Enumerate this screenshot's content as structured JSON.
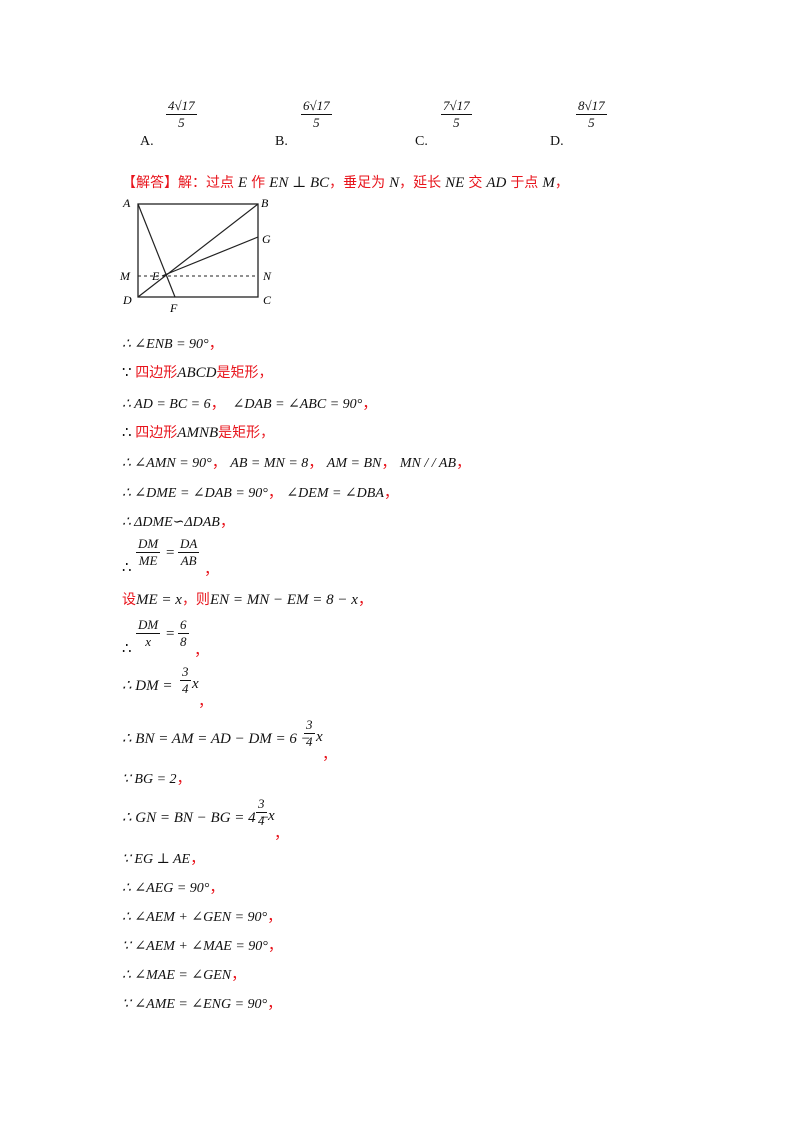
{
  "choices": [
    {
      "label": "A.",
      "num": "4√17",
      "den": "5"
    },
    {
      "label": "B.",
      "num": "6√17",
      "den": "5"
    },
    {
      "label": "C.",
      "num": "7√17",
      "den": "5"
    },
    {
      "label": "D.",
      "num": "8√17",
      "den": "5"
    }
  ],
  "answer": {
    "tag": "【解答】",
    "intro_1": "解：过点",
    "E": "E",
    "intro_2": "作",
    "en_perp_bc": "EN ⊥ BC",
    "intro_3": "，垂足为",
    "N": "N",
    "intro_4": "，延长",
    "NE": "NE",
    "intro_5": "交",
    "AD": "AD",
    "intro_6": "于点",
    "M": "M",
    "intro_7": "，"
  },
  "figure": {
    "labels": {
      "A": "A",
      "B": "B",
      "G": "G",
      "M": "M",
      "E": "E",
      "N": "N",
      "D": "D",
      "F": "F",
      "C": "C"
    }
  },
  "steps": {
    "s1": "∴ ∠ENB = 90°",
    "s2_pre": "∵ ",
    "s2_cn1": "四边形",
    "s2_m": "ABCD",
    "s2_cn2": "是矩形，",
    "s3": "∴ AD = BC = 6",
    "s3b": "∠DAB = ∠ABC = 90°",
    "s4_pre": "∴ ",
    "s4_cn1": "四边形",
    "s4_m": "AMNB",
    "s4_cn2": "是矩形，",
    "s5a": "∴ ∠AMN = 90°",
    "s5b": "AB = MN = 8",
    "s5c": "AM = BN",
    "s5d": "MN / / AB",
    "s6a": "∴ ∠DME = ∠DAB = 90°",
    "s6b": "∠DEM = ∠DBA",
    "s7": "∴ ΔDME∽ΔDAB",
    "s8_num1": "DM",
    "s8_den1": "ME",
    "s8_num2": "DA",
    "s8_den2": "AB",
    "s9_cn1": "设",
    "s9_m1": "ME = x",
    "s9_cn2": "，则",
    "s9_m2": "EN = MN − EM = 8 − x",
    "s10_num1": "DM",
    "s10_den1": "x",
    "s10_num2": "6",
    "s10_den2": "8",
    "s11_pre": "∴ DM =",
    "s11_num": "3",
    "s11_den": "4",
    "s11_post": "x",
    "s12_pre": "∴ BN = AM = AD − DM = 6 −",
    "s12_num": "3",
    "s12_den": "4",
    "s12_post": "x",
    "s13": "∵ BG = 2",
    "s14_pre": "∴ GN = BN − BG = 4 −",
    "s14_num": "3",
    "s14_den": "4",
    "s14_post": "x",
    "s15": "∵ EG ⊥ AE",
    "s16": "∴ ∠AEG = 90°",
    "s17": "∴ ∠AEM + ∠GEN = 90°",
    "s18": "∵ ∠AEM + ∠MAE = 90°",
    "s19": "∴ ∠MAE = ∠GEN",
    "s20": "∵ ∠AME = ∠ENG = 90°",
    "therefore": "∴",
    "comma": "，"
  }
}
